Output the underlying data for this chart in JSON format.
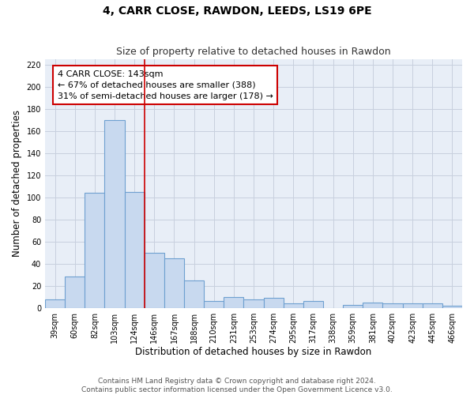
{
  "title_line1": "4, CARR CLOSE, RAWDON, LEEDS, LS19 6PE",
  "title_line2": "Size of property relative to detached houses in Rawdon",
  "xlabel": "Distribution of detached houses by size in Rawdon",
  "ylabel": "Number of detached properties",
  "categories": [
    "39sqm",
    "60sqm",
    "82sqm",
    "103sqm",
    "124sqm",
    "146sqm",
    "167sqm",
    "188sqm",
    "210sqm",
    "231sqm",
    "253sqm",
    "274sqm",
    "295sqm",
    "317sqm",
    "338sqm",
    "359sqm",
    "381sqm",
    "402sqm",
    "423sqm",
    "445sqm",
    "466sqm"
  ],
  "values": [
    8,
    28,
    104,
    170,
    105,
    50,
    45,
    25,
    6,
    10,
    8,
    9,
    4,
    6,
    0,
    3,
    5,
    4,
    4,
    4,
    2
  ],
  "bar_color": "#c8d9ef",
  "bar_edge_color": "#6ea0d0",
  "vline_x_index": 5,
  "vline_color": "#cc0000",
  "annotation_text": "4 CARR CLOSE: 143sqm\n← 67% of detached houses are smaller (388)\n31% of semi-detached houses are larger (178) →",
  "annotation_box_color": "#ffffff",
  "annotation_box_edge": "#cc0000",
  "ylim": [
    0,
    225
  ],
  "yticks": [
    0,
    20,
    40,
    60,
    80,
    100,
    120,
    140,
    160,
    180,
    200,
    220
  ],
  "grid_color": "#c8d0de",
  "bg_color": "#e8eef7",
  "footer_line1": "Contains HM Land Registry data © Crown copyright and database right 2024.",
  "footer_line2": "Contains public sector information licensed under the Open Government Licence v3.0.",
  "title_fontsize": 10,
  "subtitle_fontsize": 9,
  "axis_label_fontsize": 8.5,
  "tick_fontsize": 7,
  "annotation_fontsize": 8,
  "footer_fontsize": 6.5
}
